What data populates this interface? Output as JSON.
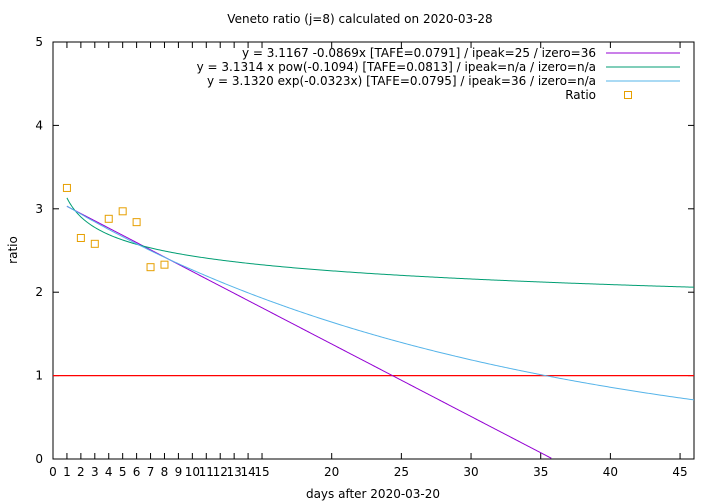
{
  "chart_data": {
    "type": "scatter",
    "title": "Veneto ratio (j=8) calculated on 2020-03-28",
    "xlabel": "days after 2020-03-20",
    "ylabel": "ratio",
    "xlim": [
      0,
      46
    ],
    "ylim": [
      0,
      5
    ],
    "x_ticks": [
      0,
      1,
      2,
      3,
      4,
      5,
      6,
      7,
      8,
      9,
      10,
      11,
      12,
      13,
      14,
      15,
      20,
      25,
      30,
      35,
      40,
      45
    ],
    "x_tick_labels": [
      "0",
      "1",
      "2",
      "3",
      "4",
      "5",
      "6",
      "7",
      "8",
      "9",
      "10",
      "11",
      "12",
      "13",
      "14",
      "15",
      "20",
      "25",
      "30",
      "35",
      "40",
      "45"
    ],
    "y_ticks": [
      0,
      1,
      2,
      3,
      4,
      5
    ],
    "y_tick_labels": [
      "0",
      "1",
      "2",
      "3",
      "4",
      "5"
    ],
    "grid": false,
    "legend_position": "top-right",
    "reference_line": {
      "y": 1,
      "color": "#ff0000"
    },
    "series": [
      {
        "name": "y = 3.1167 -0.0869x  [TAFE=0.0791] / ipeak=25 / izero=36",
        "kind": "line",
        "model": "linear",
        "a": 3.1167,
        "b": -0.0869,
        "x_range": [
          1,
          46
        ],
        "color": "#9400d3"
      },
      {
        "name": "y = 3.1314 x pow(-0.1094)  [TAFE=0.0813] / ipeak=n/a / izero=n/a",
        "kind": "line",
        "model": "power",
        "a": 3.1314,
        "b": -0.1094,
        "x_range": [
          1,
          46
        ],
        "color": "#009e73"
      },
      {
        "name": "y = 3.1320 exp(-0.0323x)  [TAFE=0.0795] / ipeak=36 / izero=n/a",
        "kind": "line",
        "model": "exp",
        "a": 3.132,
        "b": -0.0323,
        "x_range": [
          1,
          46
        ],
        "color": "#56b4e9"
      },
      {
        "name": "Ratio",
        "kind": "points",
        "marker": "open-square",
        "color": "#e69f00",
        "x": [
          1,
          2,
          3,
          4,
          5,
          6,
          7,
          8
        ],
        "y": [
          3.25,
          2.65,
          2.58,
          2.88,
          2.97,
          2.84,
          2.3,
          2.33
        ]
      }
    ]
  }
}
